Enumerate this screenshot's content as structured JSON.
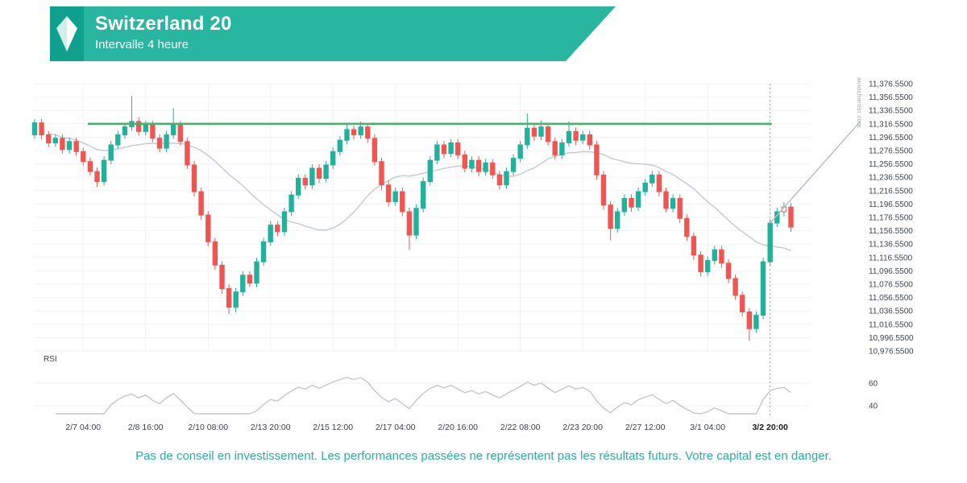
{
  "header": {
    "title": "Switzerland 20",
    "subtitle": "Intervalle 4 heure"
  },
  "watermark": "autochartist.com",
  "disclaimer": "Pas de conseil en investissement. Les performances passées ne représentent pas les résultats futurs. Votre capital est en danger.",
  "colors": {
    "brand_teal": "#29b6a1",
    "logo_bg": "#0fa18d",
    "up": "#22b19b",
    "down": "#ef5652",
    "resistance": "#4caf6e",
    "ma": "#c8ccd0",
    "forecast": "#b9bec4",
    "dashed": "#9aa0a6",
    "grid": "#f1f2f4",
    "axis_text": "#3f454b"
  },
  "chart_data": {
    "type": "candlestick",
    "instrument": "Switzerland 20",
    "interval": "4 heure",
    "y_axis": {
      "min": 10976.55,
      "max": 11376.55,
      "step": 20,
      "labels": [
        "11,376.5500",
        "11,356.5500",
        "11,336.5500",
        "11,316.5500",
        "11,296.5500",
        "11,276.5500",
        "11,256.5500",
        "11,236.5500",
        "11,216.5500",
        "11,196.5500",
        "11,176.5500",
        "11,156.5500",
        "11,136.5500",
        "11,116.5500",
        "11,096.5500",
        "11,076.5500",
        "11,056.5500",
        "11,036.5500",
        "11,016.5500",
        "10,996.5500",
        "10,976.5500"
      ]
    },
    "x_ticks": [
      {
        "index": 7,
        "label": "2/7 04:00"
      },
      {
        "index": 16,
        "label": "2/8 16:00"
      },
      {
        "index": 25,
        "label": "2/10 08:00"
      },
      {
        "index": 34,
        "label": "2/13 20:00"
      },
      {
        "index": 43,
        "label": "2/15 12:00"
      },
      {
        "index": 52,
        "label": "2/17 04:00"
      },
      {
        "index": 61,
        "label": "2/20 16:00"
      },
      {
        "index": 70,
        "label": "2/22 08:00"
      },
      {
        "index": 79,
        "label": "2/23 20:00"
      },
      {
        "index": 88,
        "label": "2/27 12:00"
      },
      {
        "index": 97,
        "label": "3/1 04:00"
      },
      {
        "index": 106,
        "label": "3/2 20:00",
        "bold": true
      }
    ],
    "candles": [
      [
        11300,
        11324,
        11294,
        11318
      ],
      [
        11318,
        11324,
        11293,
        11300
      ],
      [
        11300,
        11306,
        11282,
        11288
      ],
      [
        11288,
        11301,
        11282,
        11295
      ],
      [
        11295,
        11301,
        11272,
        11278
      ],
      [
        11278,
        11296,
        11272,
        11290
      ],
      [
        11290,
        11296,
        11269,
        11275
      ],
      [
        11275,
        11281,
        11254,
        11260
      ],
      [
        11260,
        11266,
        11239,
        11245
      ],
      [
        11245,
        11251,
        11222,
        11230
      ],
      [
        11230,
        11268,
        11224,
        11262
      ],
      [
        11262,
        11291,
        11256,
        11285
      ],
      [
        11285,
        11306,
        11279,
        11300
      ],
      [
        11300,
        11318,
        11294,
        11312
      ],
      [
        11312,
        11358,
        11306,
        11320
      ],
      [
        11320,
        11326,
        11299,
        11305
      ],
      [
        11305,
        11321,
        11299,
        11315
      ],
      [
        11315,
        11321,
        11289,
        11295
      ],
      [
        11295,
        11301,
        11274,
        11280
      ],
      [
        11280,
        11306,
        11274,
        11300
      ],
      [
        11300,
        11340,
        11294,
        11315
      ],
      [
        11315,
        11321,
        11284,
        11290
      ],
      [
        11290,
        11296,
        11249,
        11255
      ],
      [
        11255,
        11261,
        11208,
        11215
      ],
      [
        11215,
        11221,
        11173,
        11180
      ],
      [
        11180,
        11186,
        11133,
        11140
      ],
      [
        11140,
        11146,
        11098,
        11105
      ],
      [
        11105,
        11111,
        11062,
        11070
      ],
      [
        11070,
        11076,
        11032,
        11042
      ],
      [
        11042,
        11071,
        11034,
        11065
      ],
      [
        11065,
        11096,
        11059,
        11090
      ],
      [
        11090,
        11096,
        11072,
        11078
      ],
      [
        11078,
        11116,
        11072,
        11110
      ],
      [
        11110,
        11146,
        11104,
        11140
      ],
      [
        11140,
        11171,
        11134,
        11165
      ],
      [
        11165,
        11171,
        11148,
        11155
      ],
      [
        11155,
        11191,
        11149,
        11185
      ],
      [
        11185,
        11216,
        11179,
        11210
      ],
      [
        11210,
        11241,
        11204,
        11235
      ],
      [
        11235,
        11241,
        11218,
        11225
      ],
      [
        11225,
        11256,
        11219,
        11250
      ],
      [
        11250,
        11256,
        11228,
        11235
      ],
      [
        11235,
        11261,
        11229,
        11255
      ],
      [
        11255,
        11281,
        11249,
        11275
      ],
      [
        11275,
        11298,
        11269,
        11292
      ],
      [
        11292,
        11318,
        11286,
        11308
      ],
      [
        11308,
        11314,
        11293,
        11300
      ],
      [
        11300,
        11320,
        11294,
        11312
      ],
      [
        11312,
        11318,
        11288,
        11295
      ],
      [
        11295,
        11301,
        11254,
        11260
      ],
      [
        11260,
        11266,
        11218,
        11225
      ],
      [
        11225,
        11231,
        11193,
        11200
      ],
      [
        11200,
        11221,
        11194,
        11215
      ],
      [
        11215,
        11221,
        11178,
        11185
      ],
      [
        11185,
        11191,
        11128,
        11150
      ],
      [
        11150,
        11196,
        11144,
        11190
      ],
      [
        11190,
        11236,
        11184,
        11230
      ],
      [
        11230,
        11268,
        11224,
        11262
      ],
      [
        11262,
        11291,
        11256,
        11285
      ],
      [
        11285,
        11291,
        11265,
        11272
      ],
      [
        11272,
        11294,
        11266,
        11288
      ],
      [
        11288,
        11294,
        11264,
        11270
      ],
      [
        11270,
        11276,
        11244,
        11250
      ],
      [
        11250,
        11268,
        11244,
        11262
      ],
      [
        11262,
        11268,
        11238,
        11245
      ],
      [
        11245,
        11264,
        11239,
        11258
      ],
      [
        11258,
        11264,
        11234,
        11240
      ],
      [
        11240,
        11246,
        11218,
        11225
      ],
      [
        11225,
        11251,
        11219,
        11245
      ],
      [
        11245,
        11271,
        11239,
        11265
      ],
      [
        11265,
        11291,
        11259,
        11285
      ],
      [
        11285,
        11332,
        11279,
        11310
      ],
      [
        11310,
        11316,
        11291,
        11298
      ],
      [
        11298,
        11322,
        11292,
        11312
      ],
      [
        11312,
        11318,
        11284,
        11290
      ],
      [
        11290,
        11296,
        11263,
        11270
      ],
      [
        11270,
        11294,
        11264,
        11288
      ],
      [
        11288,
        11320,
        11282,
        11305
      ],
      [
        11305,
        11311,
        11285,
        11292
      ],
      [
        11292,
        11306,
        11286,
        11300
      ],
      [
        11300,
        11306,
        11278,
        11285
      ],
      [
        11285,
        11291,
        11233,
        11240
      ],
      [
        11240,
        11246,
        11188,
        11195
      ],
      [
        11195,
        11201,
        11142,
        11160
      ],
      [
        11160,
        11191,
        11154,
        11185
      ],
      [
        11185,
        11211,
        11179,
        11205
      ],
      [
        11205,
        11211,
        11185,
        11192
      ],
      [
        11192,
        11221,
        11186,
        11215
      ],
      [
        11215,
        11234,
        11209,
        11228
      ],
      [
        11228,
        11246,
        11222,
        11240
      ],
      [
        11240,
        11246,
        11208,
        11215
      ],
      [
        11215,
        11221,
        11184,
        11190
      ],
      [
        11190,
        11211,
        11184,
        11205
      ],
      [
        11205,
        11211,
        11168,
        11175
      ],
      [
        11175,
        11181,
        11141,
        11148
      ],
      [
        11148,
        11154,
        11113,
        11120
      ],
      [
        11120,
        11126,
        11088,
        11095
      ],
      [
        11095,
        11118,
        11089,
        11112
      ],
      [
        11112,
        11134,
        11106,
        11128
      ],
      [
        11128,
        11134,
        11101,
        11108
      ],
      [
        11108,
        11114,
        11078,
        11085
      ],
      [
        11085,
        11091,
        11053,
        11060
      ],
      [
        11060,
        11066,
        11028,
        11035
      ],
      [
        11035,
        11041,
        10992,
        11010
      ],
      [
        11010,
        11036,
        11004,
        11030
      ],
      [
        11030,
        11116,
        11024,
        11110
      ],
      [
        11110,
        11174,
        11104,
        11168
      ],
      [
        11168,
        11191,
        11162,
        11185
      ],
      [
        11185,
        11199,
        11178,
        11192
      ],
      [
        11192,
        11198,
        11155,
        11162
      ]
    ],
    "hollow_indices": [
      108
    ],
    "resistance_level": 11316.55,
    "resistance_span": {
      "from_index": 8,
      "to_index": 106
    },
    "vline_index": 106,
    "forecast": {
      "from_index": 106,
      "from_price": 11168,
      "to_index": 119,
      "to_price": 11320
    },
    "ma_period": 20,
    "rsi": {
      "label": "RSI",
      "period": 14,
      "axis_labels": [
        "60",
        "40"
      ]
    }
  }
}
